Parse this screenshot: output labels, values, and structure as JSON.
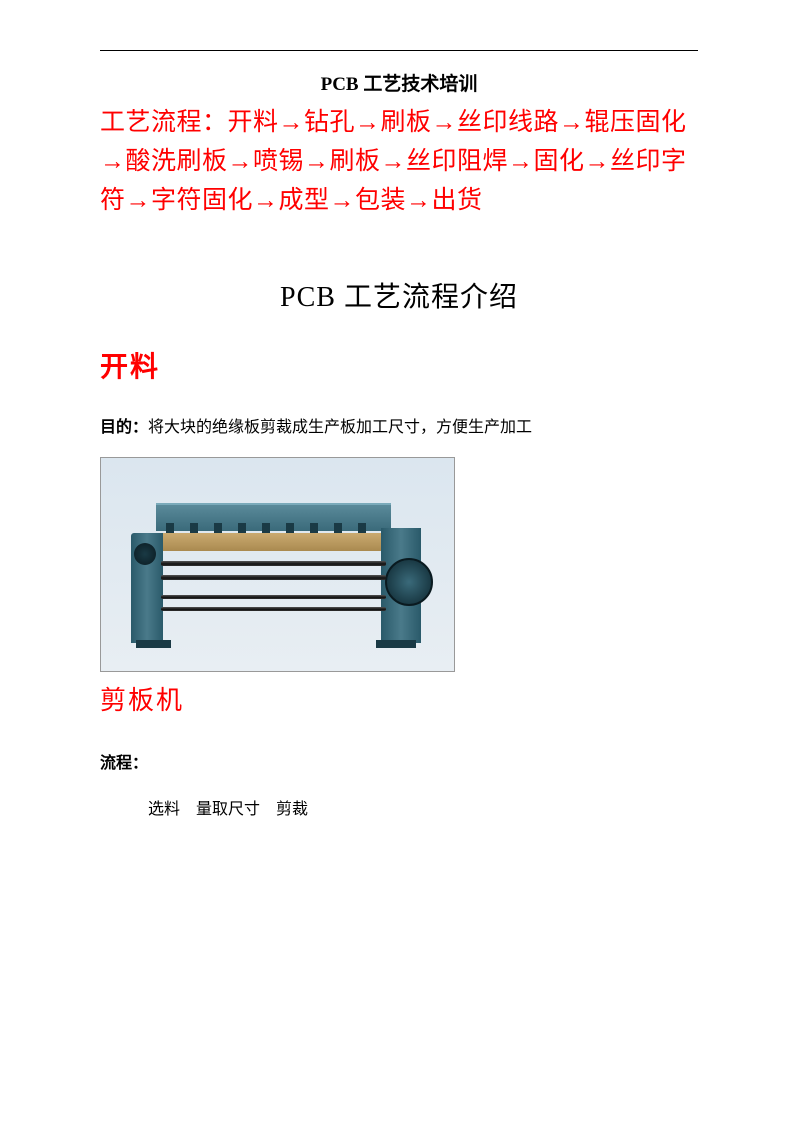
{
  "colors": {
    "accent": "#ff0000",
    "text": "#000000",
    "background": "#ffffff"
  },
  "doc_title": "PCB 工艺技术培训",
  "process_flow_text": "工艺流程：开料→钻孔→刷板→丝印线路→辊压固化→酸洗刷板→喷锡→刷板→丝印阻焊→固化→丝印字符→字符固化→成型→包装→出货",
  "intro_title": "PCB 工艺流程介绍",
  "section1": {
    "heading": "开料",
    "purpose_label": "目的：",
    "purpose_text": "将大块的绝缘板剪裁成生产板加工尺寸，方便生产加工",
    "image_caption": "剪板机",
    "image_semantic": "shearing-machine",
    "flow_label": "流程：",
    "flow_steps": "选料　量取尺寸　剪裁"
  }
}
